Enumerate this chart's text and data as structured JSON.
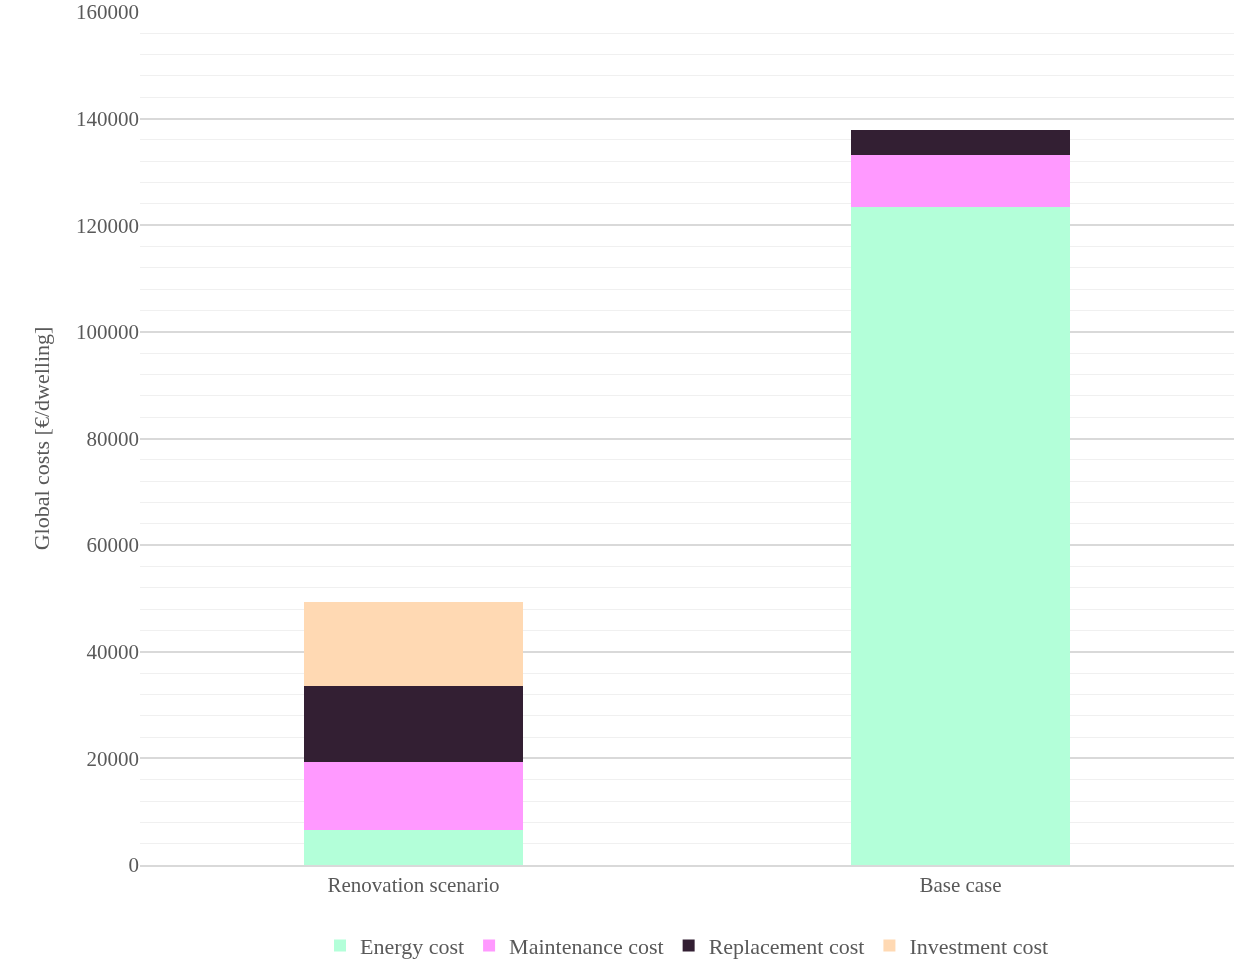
{
  "chart_data": {
    "type": "bar",
    "stacked": true,
    "ylabel": "Global costs [€/dwelling]",
    "categories": [
      "Renovation scenario",
      "Base case"
    ],
    "series": [
      {
        "name": "Energy cost",
        "color": "#b3ffd9",
        "values": [
          6600,
          123500
        ]
      },
      {
        "name": "Maintenance cost",
        "color": "#ff99ff",
        "values": [
          12800,
          9600
        ]
      },
      {
        "name": "Replacement cost",
        "color": "#331f33",
        "values": [
          14100,
          4700
        ]
      },
      {
        "name": "Investment cost",
        "color": "#ffd9b3",
        "values": [
          15900,
          0
        ]
      }
    ],
    "ylim": [
      0,
      160000
    ],
    "yticks": [
      0,
      20000,
      40000,
      60000,
      80000,
      100000,
      120000,
      140000,
      160000
    ],
    "grid": "y",
    "legend": "bottom"
  }
}
